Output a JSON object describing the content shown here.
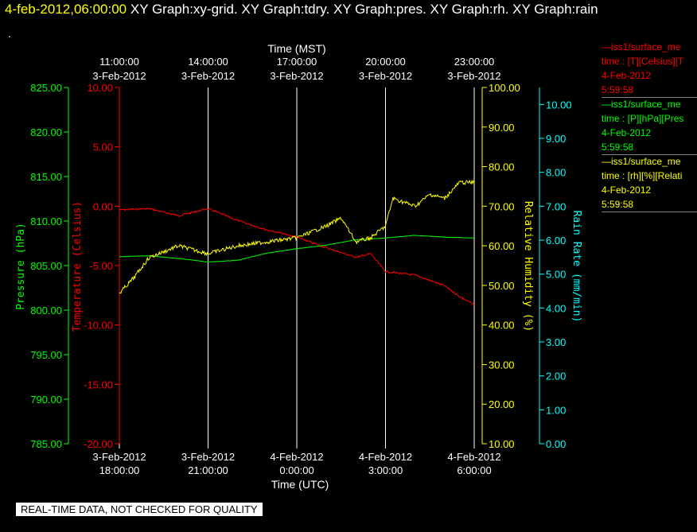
{
  "header": {
    "timestamp": "4-feb-2012,06:00:00",
    "views": "XY Graph:xy-grid.  XY Graph:tdry.  XY Graph:pres.  XY Graph:rh.  XY Graph:rain"
  },
  "dot": ".",
  "notice": "REAL-TIME DATA, NOT CHECKED FOR QUALITY",
  "colors": {
    "red": "#ff0000",
    "green": "#00ff00",
    "yellow": "#ffff00",
    "cyan": "#00ffff",
    "white": "#ffffff"
  },
  "legend": [
    {
      "line1": "iss1/surface_me",
      "line2": "time : [T][Celsius][T",
      "line3": "4-Feb-2012",
      "line4": "5:59:58",
      "color": "#ff0000"
    },
    {
      "line1": "iss1/surface_me",
      "line2": "time : [P][hPa][Pres",
      "line3": "4-Feb-2012",
      "line4": "5:59:58",
      "color": "#00ff00"
    },
    {
      "line1": "iss1/surface_me",
      "line2": "time : [rh][%][Relati",
      "line3": "4-Feb-2012",
      "line4": "5:59:58",
      "color": "#ffff00"
    }
  ],
  "chart_data": {
    "type": "line",
    "title": "",
    "x_top_label": "Time (MST)",
    "x_top_ticks": [
      {
        "time": "11:00:00",
        "date": "3-Feb-2012"
      },
      {
        "time": "14:00:00",
        "date": "3-Feb-2012"
      },
      {
        "time": "17:00:00",
        "date": "3-Feb-2012"
      },
      {
        "time": "20:00:00",
        "date": "3-Feb-2012"
      },
      {
        "time": "23:00:00",
        "date": "3-Feb-2012"
      }
    ],
    "x_bottom_label": "Time (UTC)",
    "x_bottom_ticks": [
      {
        "date": "3-Feb-2012",
        "time": "18:00:00"
      },
      {
        "date": "3-Feb-2012",
        "time": "21:00:00"
      },
      {
        "date": "4-Feb-2012",
        "time": "0:00:00"
      },
      {
        "date": "4-Feb-2012",
        "time": "3:00:00"
      },
      {
        "date": "4-Feb-2012",
        "time": "6:00:00"
      }
    ],
    "x_range_utc": [
      "2012-02-03 18:00:00",
      "2012-02-04 06:00:00"
    ],
    "grid": "vertical",
    "axes": {
      "pressure": {
        "label": "Pressure (hPa)",
        "min": 785,
        "max": 825,
        "ticks": [
          "785.00",
          "790.00",
          "795.00",
          "800.00",
          "805.00",
          "810.00",
          "815.00",
          "820.00",
          "825.00"
        ]
      },
      "temperature": {
        "label": "Temperature (Celsius)",
        "min": -20,
        "max": 10,
        "ticks": [
          "-20.00",
          "-15.00",
          "-10.00",
          "-5.00",
          "0.00",
          "5.00",
          "10.00"
        ]
      },
      "humidity": {
        "label": "Relative Humidity (%)",
        "min": 10,
        "max": 100,
        "ticks": [
          "10.00",
          "20.00",
          "30.00",
          "40.00",
          "50.00",
          "60.00",
          "70.00",
          "80.00",
          "90.00",
          "100.00"
        ]
      },
      "rain": {
        "label": "Rain Rate (mm/min)",
        "min": 0,
        "max": 10.5,
        "ticks": [
          "0.00",
          "1.00",
          "2.00",
          "3.00",
          "4.00",
          "5.00",
          "6.00",
          "7.00",
          "8.00",
          "9.00",
          "10.00"
        ]
      }
    },
    "series": [
      {
        "axis": "temperature",
        "color": "#ff0000",
        "x": [
          "2012-02-03 18:00",
          "2012-02-03 19:00",
          "2012-02-03 20:00",
          "2012-02-03 21:00",
          "2012-02-03 22:00",
          "2012-02-03 23:00",
          "2012-02-04 00:00",
          "2012-02-04 01:00",
          "2012-02-04 02:00",
          "2012-02-04 02:30",
          "2012-02-04 03:00",
          "2012-02-04 04:00",
          "2012-02-04 05:00",
          "2012-02-04 05:30",
          "2012-02-04 06:00"
        ],
        "y": [
          -0.3,
          -0.2,
          -0.8,
          -0.2,
          -1.2,
          -2.0,
          -2.6,
          -3.5,
          -4.3,
          -4.0,
          -5.5,
          -5.8,
          -6.7,
          -7.6,
          -8.3
        ]
      },
      {
        "axis": "pressure",
        "color": "#00ff00",
        "x": [
          "2012-02-03 18:00",
          "2012-02-03 19:00",
          "2012-02-03 20:00",
          "2012-02-03 21:00",
          "2012-02-03 22:00",
          "2012-02-03 23:00",
          "2012-02-04 00:00",
          "2012-02-04 01:00",
          "2012-02-04 02:00",
          "2012-02-04 03:00",
          "2012-02-04 04:00",
          "2012-02-04 05:00",
          "2012-02-04 06:00"
        ],
        "y": [
          806.0,
          806.1,
          805.8,
          805.4,
          805.6,
          806.4,
          806.9,
          807.3,
          807.9,
          808.1,
          808.4,
          808.2,
          808.1
        ]
      },
      {
        "axis": "humidity",
        "color": "#ffff00",
        "x": [
          "2012-02-03 18:00",
          "2012-02-03 18:30",
          "2012-02-03 19:00",
          "2012-02-03 20:00",
          "2012-02-03 21:00",
          "2012-02-03 22:00",
          "2012-02-03 23:00",
          "2012-02-04 00:00",
          "2012-02-04 01:00",
          "2012-02-04 01:30",
          "2012-02-04 02:00",
          "2012-02-04 02:30",
          "2012-02-04 03:00",
          "2012-02-04 03:15",
          "2012-02-04 04:00",
          "2012-02-04 04:30",
          "2012-02-04 05:00",
          "2012-02-04 05:30",
          "2012-02-04 06:00"
        ],
        "y": [
          48,
          52,
          57,
          60,
          58,
          60,
          61,
          62,
          65,
          67,
          61,
          62,
          65,
          72,
          70,
          73,
          72,
          76,
          76
        ]
      }
    ]
  }
}
